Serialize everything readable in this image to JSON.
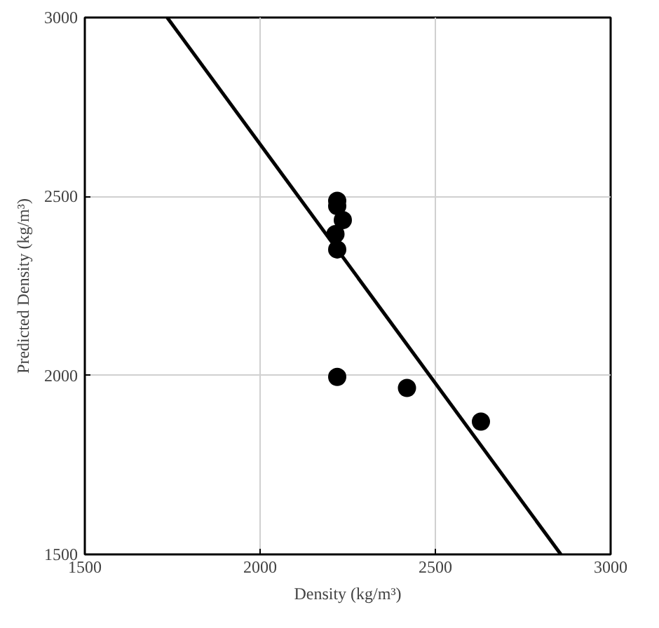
{
  "chart_data": {
    "type": "scatter",
    "xlabel": "Density (kg/m³)",
    "ylabel": "Predicted Density (kg/m³)",
    "xlim": [
      1500,
      3000
    ],
    "ylim": [
      1500,
      3000
    ],
    "xticks": [
      1500,
      2000,
      2500,
      3000
    ],
    "yticks": [
      1500,
      2000,
      2500,
      3000
    ],
    "grid": true,
    "series": [
      {
        "marker": "circle",
        "color": "#000000",
        "x": [
          2220,
          2220,
          2236,
          2215,
          2220,
          2220,
          2419,
          2630
        ],
        "values": [
          2488,
          2473,
          2434,
          2395,
          2352,
          1996,
          1965,
          1871
        ]
      },
      {
        "type": "line",
        "color": "#000000",
        "x": [
          1735,
          2858
        ],
        "values": [
          3000,
          1500
        ],
        "line_style": "solid"
      }
    ]
  }
}
